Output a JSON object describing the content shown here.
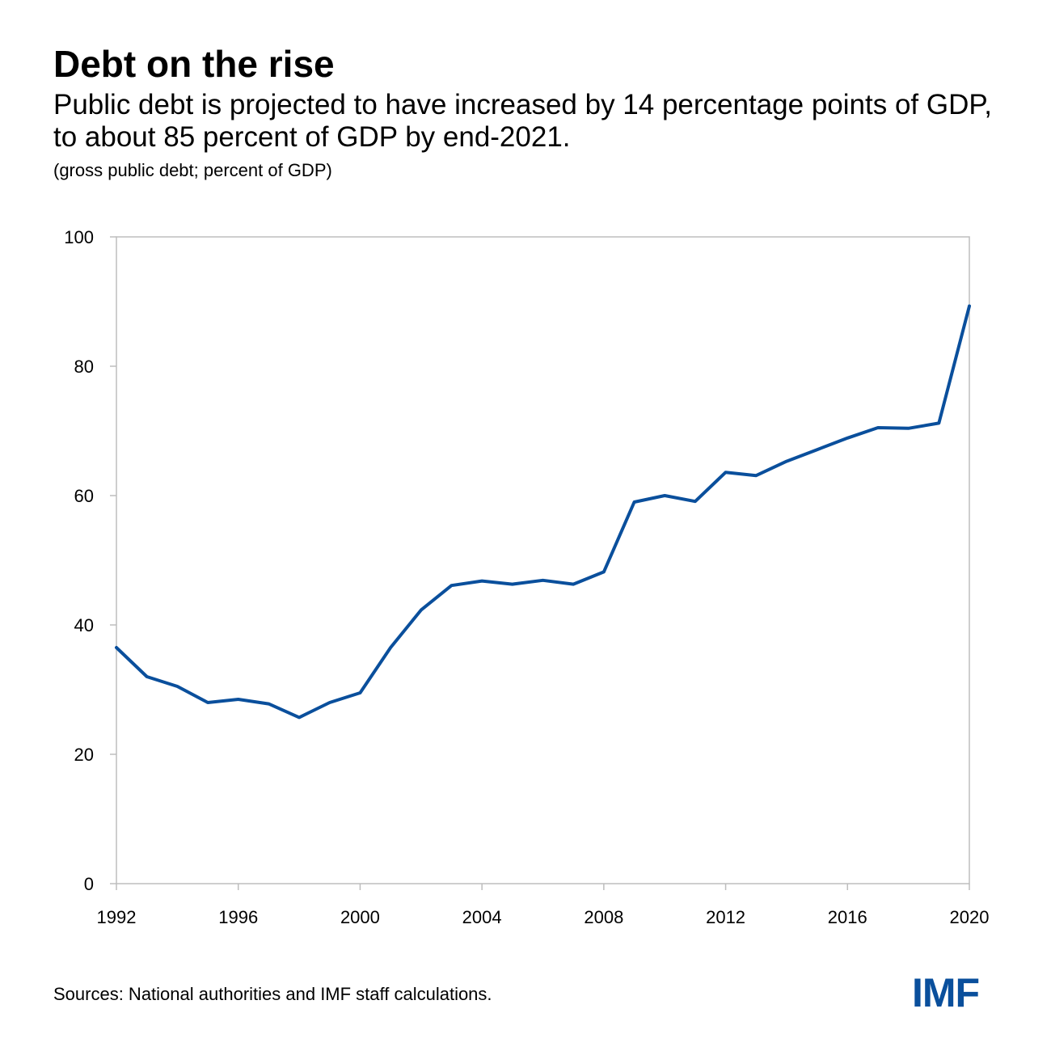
{
  "header": {
    "title": "Debt on the rise",
    "subtitle": "Public debt is projected to have increased by 14 percentage points of GDP, to about 85 percent of GDP by end-2021.",
    "units": "(gross public debt; percent of GDP)"
  },
  "footer": {
    "source": "Sources: National authorities and IMF staff calculations.",
    "logo": "IMF"
  },
  "colors": {
    "line": "#0a4f9c",
    "logo": "#0a4f9c",
    "axis": "#bdbdbd"
  },
  "chart_data": {
    "type": "line",
    "title": "Debt on the rise",
    "xlabel": "",
    "ylabel": "",
    "xlim": [
      1992,
      2020
    ],
    "ylim": [
      0,
      100
    ],
    "xticks": [
      1992,
      1996,
      2000,
      2004,
      2008,
      2012,
      2016,
      2020
    ],
    "xtick_labels": [
      "1992",
      "1996",
      "2000",
      "2004",
      "2008",
      "2012",
      "2016",
      "2020"
    ],
    "yticks": [
      0,
      20,
      40,
      60,
      80,
      100
    ],
    "ytick_labels": [
      "0",
      "20",
      "40",
      "60",
      "80",
      "100"
    ],
    "grid": false,
    "series": [
      {
        "name": "Gross public debt",
        "x": [
          1992,
          1993,
          1994,
          1995,
          1996,
          1997,
          1998,
          1999,
          2000,
          2001,
          2002,
          2003,
          2004,
          2005,
          2006,
          2007,
          2008,
          2009,
          2010,
          2011,
          2012,
          2013,
          2014,
          2015,
          2016,
          2017,
          2018,
          2019,
          2020
        ],
        "values": [
          36.5,
          32.0,
          30.5,
          28.0,
          28.5,
          27.8,
          25.7,
          28.0,
          29.5,
          36.5,
          42.3,
          46.1,
          46.8,
          46.3,
          46.9,
          46.3,
          48.2,
          59.0,
          60.0,
          59.1,
          63.6,
          63.1,
          65.3,
          67.1,
          68.9,
          70.5,
          70.4,
          71.2,
          89.3
        ]
      }
    ]
  }
}
